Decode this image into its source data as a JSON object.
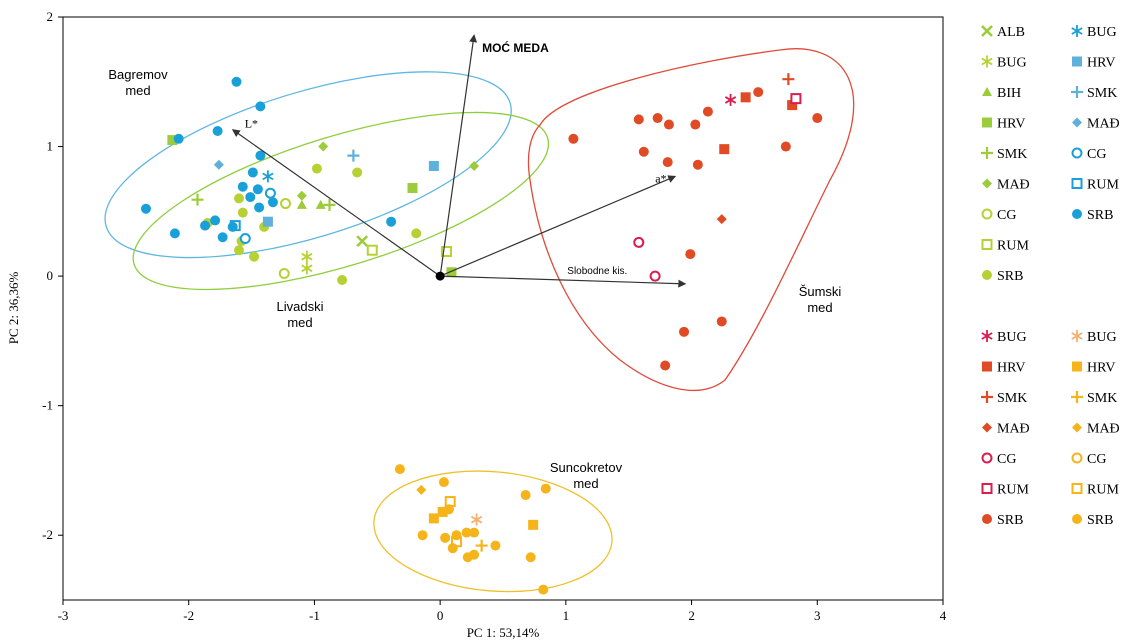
{
  "chart_data": {
    "type": "scatter",
    "xlabel": "PC 1: 53,14%",
    "ylabel": "PC 2: 36,36%",
    "xlim": [
      -3,
      4
    ],
    "ylim": [
      -2.5,
      2
    ],
    "xticks": [
      "-3",
      "-2",
      "-1",
      "0",
      "1",
      "2",
      "3",
      "4"
    ],
    "yticks": [
      "2",
      "1",
      "0",
      "-1",
      "-2"
    ],
    "colors": {
      "green": "#9ccc3b",
      "blue": "#1aa0d8",
      "red": "#e04a24",
      "orange": "#f4b41a",
      "crimson": "#d81d4f",
      "olive": "#b7d134"
    },
    "groups": [
      {
        "label": "Bagremov\nmed",
        "color": "#5fb7e0",
        "ellipse": {
          "cx": -1.05,
          "cy": 0.86,
          "rx": 1.68,
          "ry": 0.56,
          "angle": 17
        }
      },
      {
        "label": "Livadski\nmed",
        "color": "#8fce3b",
        "ellipse": {
          "cx": -0.79,
          "cy": 0.58,
          "rx": 1.72,
          "ry": 0.5,
          "angle": 17
        }
      },
      {
        "label": "Suncokretov\nmed",
        "color": "#f0c02a",
        "ellipse": {
          "cx": 0.42,
          "cy": -1.97,
          "rx": 0.95,
          "ry": 0.46,
          "angle": -5
        }
      },
      {
        "label": "Šumski\nmed",
        "color": "#e04a3a",
        "ellipse": null
      }
    ],
    "vectors": [
      {
        "label": "MOĆ MEDA",
        "x": 0.27,
        "y": 1.86
      },
      {
        "label": "L*",
        "x": -1.65,
        "y": 1.13
      },
      {
        "label": "a*",
        "x": 1.87,
        "y": 0.77
      },
      {
        "label": "Slobodne kis.",
        "x": 1.95,
        "y": -0.06
      }
    ],
    "series": [
      {
        "name": "ALB",
        "group": "Livadski",
        "marker": "x",
        "color": "#9ccc3b",
        "points": [
          [
            -0.62,
            0.27
          ]
        ]
      },
      {
        "name": "BUG",
        "group": "Livadski",
        "marker": "star",
        "color": "#b7d134",
        "points": [
          [
            -1.06,
            0.15
          ],
          [
            -1.06,
            0.06
          ]
        ]
      },
      {
        "name": "BIH",
        "group": "Livadski",
        "marker": "triangle",
        "color": "#9ccc3b",
        "points": [
          [
            -1.1,
            0.55
          ],
          [
            -0.95,
            0.55
          ]
        ]
      },
      {
        "name": "HRV",
        "group": "Livadski",
        "marker": "square",
        "color": "#9ccc3b",
        "points": [
          [
            -2.13,
            1.05
          ],
          [
            -0.22,
            0.68
          ],
          [
            0.09,
            0.03
          ]
        ]
      },
      {
        "name": "SMK",
        "group": "Livadski",
        "marker": "plus",
        "color": "#9ccc3b",
        "points": [
          [
            -1.93,
            0.59
          ],
          [
            -0.88,
            0.55
          ]
        ]
      },
      {
        "name": "MAĐ",
        "group": "Livadski",
        "marker": "diamond",
        "color": "#9ccc3b",
        "points": [
          [
            -0.93,
            1.0
          ],
          [
            0.27,
            0.85
          ],
          [
            -1.1,
            0.62
          ]
        ]
      },
      {
        "name": "CG",
        "group": "Livadski",
        "marker": "circle-open",
        "color": "#b7d134",
        "points": [
          [
            -1.23,
            0.56
          ],
          [
            -1.24,
            0.02
          ]
        ]
      },
      {
        "name": "RUM",
        "group": "Livadski",
        "marker": "square-open",
        "color": "#b7d134",
        "points": [
          [
            -0.54,
            0.2
          ],
          [
            0.05,
            0.19
          ]
        ]
      },
      {
        "name": "SRB",
        "group": "Livadski",
        "marker": "circle",
        "color": "#b7d134",
        "points": [
          [
            -1.85,
            0.41
          ],
          [
            -1.6,
            0.6
          ],
          [
            -1.57,
            0.49
          ],
          [
            -1.4,
            0.38
          ],
          [
            -1.58,
            0.27
          ],
          [
            -1.6,
            0.2
          ],
          [
            -1.48,
            0.15
          ],
          [
            -0.98,
            0.83
          ],
          [
            -0.66,
            0.8
          ],
          [
            -0.78,
            -0.03
          ],
          [
            -0.19,
            0.33
          ]
        ]
      },
      {
        "name": "BUG",
        "group": "Bagremov",
        "marker": "star",
        "color": "#1aa0d8",
        "points": [
          [
            -1.37,
            0.77
          ]
        ]
      },
      {
        "name": "HRV",
        "group": "Bagremov",
        "marker": "square",
        "color": "#5fb0da",
        "points": [
          [
            -0.05,
            0.85
          ],
          [
            -1.37,
            0.42
          ]
        ]
      },
      {
        "name": "SMK",
        "group": "Bagremov",
        "marker": "plus",
        "color": "#5fb0da",
        "points": [
          [
            -0.69,
            0.93
          ]
        ]
      },
      {
        "name": "MAĐ",
        "group": "Bagremov",
        "marker": "diamond",
        "color": "#5fb0da",
        "points": [
          [
            -1.76,
            0.86
          ]
        ]
      },
      {
        "name": "CG",
        "group": "Bagremov",
        "marker": "circle-open",
        "color": "#1aa0d8",
        "points": [
          [
            -1.35,
            0.64
          ],
          [
            -1.55,
            0.29
          ]
        ]
      },
      {
        "name": "RUM",
        "group": "Bagremov",
        "marker": "square-open",
        "color": "#1aa0d8",
        "points": [
          [
            -1.63,
            0.39
          ]
        ]
      },
      {
        "name": "SRB",
        "group": "Bagremov",
        "marker": "circle",
        "color": "#1aa0d8",
        "points": [
          [
            -1.62,
            1.5
          ],
          [
            -1.43,
            1.31
          ],
          [
            -1.77,
            1.12
          ],
          [
            -2.08,
            1.06
          ],
          [
            -1.43,
            0.93
          ],
          [
            -1.49,
            0.8
          ],
          [
            -1.57,
            0.69
          ],
          [
            -1.45,
            0.67
          ],
          [
            -1.33,
            0.57
          ],
          [
            -1.51,
            0.61
          ],
          [
            -2.34,
            0.52
          ],
          [
            -1.79,
            0.43
          ],
          [
            -1.65,
            0.38
          ],
          [
            -1.73,
            0.3
          ],
          [
            -1.87,
            0.39
          ],
          [
            -2.11,
            0.33
          ],
          [
            -1.44,
            0.53
          ],
          [
            -0.39,
            0.42
          ]
        ]
      },
      {
        "name": "BUG",
        "group": "Šumski",
        "marker": "star",
        "color": "#d81d4f",
        "points": [
          [
            2.31,
            1.36
          ]
        ]
      },
      {
        "name": "HRV",
        "group": "Šumski",
        "marker": "square",
        "color": "#e04a24",
        "points": [
          [
            2.43,
            1.38
          ],
          [
            2.8,
            1.32
          ],
          [
            2.26,
            0.98
          ]
        ]
      },
      {
        "name": "SMK",
        "group": "Šumski",
        "marker": "plus",
        "color": "#e04a24",
        "points": [
          [
            2.77,
            1.52
          ]
        ]
      },
      {
        "name": "MAĐ",
        "group": "Šumski",
        "marker": "diamond",
        "color": "#e04a24",
        "points": [
          [
            2.24,
            0.44
          ]
        ]
      },
      {
        "name": "CG",
        "group": "Šumski",
        "marker": "circle-open",
        "color": "#d81d4f",
        "points": [
          [
            1.58,
            0.26
          ],
          [
            1.71,
            0.0
          ]
        ]
      },
      {
        "name": "RUM",
        "group": "Šumski",
        "marker": "square-open",
        "color": "#d81d4f",
        "points": [
          [
            2.83,
            1.37
          ]
        ]
      },
      {
        "name": "SRB",
        "group": "Šumski",
        "marker": "circle",
        "color": "#e04a24",
        "points": [
          [
            2.53,
            1.42
          ],
          [
            3.0,
            1.22
          ],
          [
            1.06,
            1.06
          ],
          [
            1.58,
            1.21
          ],
          [
            1.73,
            1.22
          ],
          [
            1.82,
            1.17
          ],
          [
            2.03,
            1.17
          ],
          [
            2.13,
            1.27
          ],
          [
            1.62,
            0.96
          ],
          [
            1.81,
            0.88
          ],
          [
            2.05,
            0.86
          ],
          [
            2.75,
            1.0
          ],
          [
            1.99,
            0.17
          ],
          [
            1.94,
            -0.43
          ],
          [
            2.24,
            -0.35
          ],
          [
            1.79,
            -0.69
          ]
        ]
      },
      {
        "name": "BUG",
        "group": "Suncokretov",
        "marker": "star",
        "color": "#f4b070",
        "points": [
          [
            0.29,
            -1.88
          ]
        ]
      },
      {
        "name": "HRV",
        "group": "Suncokretov",
        "marker": "square",
        "color": "#f4b41a",
        "points": [
          [
            -0.05,
            -1.87
          ],
          [
            0.02,
            -1.82
          ],
          [
            0.74,
            -1.92
          ]
        ]
      },
      {
        "name": "SMK",
        "group": "Suncokretov",
        "marker": "plus",
        "color": "#f4b41a",
        "points": [
          [
            0.33,
            -2.08
          ]
        ]
      },
      {
        "name": "MAĐ",
        "group": "Suncokretov",
        "marker": "diamond",
        "color": "#f4b41a",
        "points": [
          [
            -0.15,
            -1.65
          ]
        ]
      },
      {
        "name": "CG",
        "group": "Suncokretov",
        "marker": "circle-open",
        "color": "#f4b41a",
        "points": []
      },
      {
        "name": "RUM",
        "group": "Suncokretov",
        "marker": "square-open",
        "color": "#f4b41a",
        "points": [
          [
            0.08,
            -1.74
          ],
          [
            0.13,
            -2.05
          ]
        ]
      },
      {
        "name": "SRB",
        "group": "Suncokretov",
        "marker": "circle",
        "color": "#f4b41a",
        "points": [
          [
            -0.32,
            -1.49
          ],
          [
            0.03,
            -1.59
          ],
          [
            0.84,
            -1.64
          ],
          [
            0.68,
            -1.69
          ],
          [
            0.07,
            -1.8
          ],
          [
            -0.14,
            -2.0
          ],
          [
            0.04,
            -2.02
          ],
          [
            0.13,
            -2.0
          ],
          [
            0.21,
            -1.98
          ],
          [
            0.27,
            -1.98
          ],
          [
            0.1,
            -2.1
          ],
          [
            0.44,
            -2.08
          ],
          [
            0.72,
            -2.17
          ],
          [
            0.22,
            -2.17
          ],
          [
            0.27,
            -2.15
          ],
          [
            0.82,
            -2.42
          ]
        ]
      }
    ],
    "legend": {
      "placement": "right",
      "blocks": [
        [
          [
            "ALB",
            "x",
            "#9ccc3b"
          ],
          [
            "BUG",
            "star",
            "#1aa0d8"
          ],
          [
            "BUG",
            "star",
            "#b7d134"
          ],
          [
            "HRV",
            "square",
            "#5fb0da"
          ],
          [
            "BIH",
            "triangle",
            "#9ccc3b"
          ],
          [
            "SMK",
            "plus",
            "#5fb0da"
          ],
          [
            "HRV",
            "square",
            "#9ccc3b"
          ],
          [
            "MAĐ",
            "diamond",
            "#5fb0da"
          ],
          [
            "SMK",
            "plus",
            "#9ccc3b"
          ],
          [
            "CG",
            "circle-open",
            "#1aa0d8"
          ],
          [
            "MAĐ",
            "diamond",
            "#9ccc3b"
          ],
          [
            "RUM",
            "square-open",
            "#1aa0d8"
          ],
          [
            "CG",
            "circle-open",
            "#b7d134"
          ],
          [
            "SRB",
            "circle",
            "#1aa0d8"
          ],
          [
            "RUM",
            "square-open",
            "#b7d134"
          ],
          null,
          [
            "SRB",
            "circle",
            "#b7d134"
          ],
          null
        ],
        [
          [
            "BUG",
            "star",
            "#d81d4f"
          ],
          [
            "BUG",
            "star",
            "#f4b070"
          ],
          [
            "HRV",
            "square",
            "#e04a24"
          ],
          [
            "HRV",
            "square",
            "#f4b41a"
          ],
          [
            "SMK",
            "plus",
            "#e04a24"
          ],
          [
            "SMK",
            "plus",
            "#f4b41a"
          ],
          [
            "MAĐ",
            "diamond",
            "#e04a24"
          ],
          [
            "MAĐ",
            "diamond",
            "#f4b41a"
          ],
          [
            "CG",
            "circle-open",
            "#d81d4f"
          ],
          [
            "CG",
            "circle-open",
            "#f4b41a"
          ],
          [
            "RUM",
            "square-open",
            "#d81d4f"
          ],
          [
            "RUM",
            "square-open",
            "#f4b41a"
          ],
          [
            "SRB",
            "circle",
            "#e04a24"
          ],
          [
            "SRB",
            "circle",
            "#f4b41a"
          ]
        ]
      ]
    }
  }
}
